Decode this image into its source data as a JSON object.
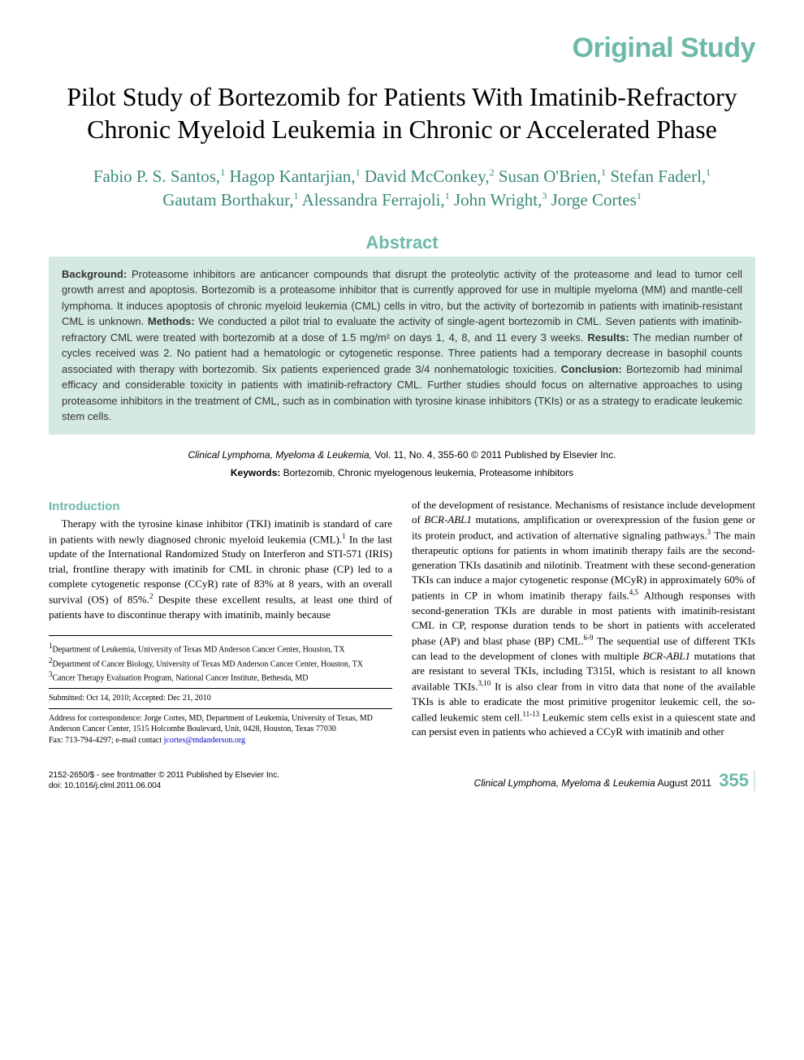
{
  "colors": {
    "accent": "#6db9a8",
    "accent_dark": "#3a8a7a",
    "abstract_bg": "#d5e9e3",
    "text": "#000000",
    "abstract_text": "#333333",
    "link": "#0000cc",
    "background": "#ffffff"
  },
  "typography": {
    "header_label_size": 34,
    "title_size": 32,
    "author_size": 21,
    "abstract_heading_size": 22,
    "abstract_body_size": 13,
    "body_size": 13,
    "section_heading_size": 15,
    "affiliations_size": 10,
    "footer_size": 10,
    "page_num_size": 22
  },
  "header_label": "Original Study",
  "title": "Pilot Study of Bortezomib for Patients With Imatinib-Refractory Chronic Myeloid Leukemia in Chronic or Accelerated Phase",
  "authors_html": "Fabio P. S. Santos,<sup>1</sup> Hagop Kantarjian,<sup>1</sup> David McConkey,<sup>2</sup> Susan O'Brien,<sup>1</sup> Stefan Faderl,<sup>1</sup> Gautam Borthakur,<sup>1</sup> Alessandra Ferrajoli,<sup>1</sup> John Wright,<sup>3</sup> Jorge Cortes<sup>1</sup>",
  "abstract": {
    "heading": "Abstract",
    "sections": [
      {
        "label": "Background:",
        "text": " Proteasome inhibitors are anticancer compounds that disrupt the proteolytic activity of the proteasome and lead to tumor cell growth arrest and apoptosis. Bortezomib is a proteasome inhibitor that is currently approved for use in multiple myeloma (MM) and mantle-cell lymphoma. It induces apoptosis of chronic myeloid leukemia (CML) cells in vitro, but the activity of bortezomib in patients with imatinib-resistant CML is unknown. "
      },
      {
        "label": "Methods:",
        "text": " We conducted a pilot trial to evaluate the activity of single-agent bortezomib in CML. Seven patients with imatinib-refractory CML were treated with bortezomib at a dose of 1.5 mg/m² on days 1, 4, 8, and 11 every 3 weeks. "
      },
      {
        "label": "Results:",
        "text": " The median number of cycles received was 2. No patient had a hematologic or cytogenetic response. Three patients had a temporary decrease in basophil counts associated with therapy with bortezomib. Six patients experienced grade 3/4 nonhematologic toxicities. "
      },
      {
        "label": "Conclusion:",
        "text": " Bortezomib had minimal efficacy and considerable toxicity in patients with imatinib-refractory CML. Further studies should focus on alternative approaches to using proteasome inhibitors in the treatment of CML, such as in combination with tyrosine kinase inhibitors (TKIs) or as a strategy to eradicate leukemic stem cells."
      }
    ]
  },
  "citation": {
    "journal": "Clinical Lymphoma, Myeloma & Leukemia,",
    "details": " Vol. 11, No. 4, 355-60 © 2011 Published by Elsevier Inc."
  },
  "keywords": {
    "label": "Keywords:",
    "text": " Bortezomib, Chronic myelogenous leukemia, Proteasome inhibitors"
  },
  "introduction": {
    "heading": "Introduction",
    "col1_html": "Therapy with the tyrosine kinase inhibitor (TKI) imatinib is standard of care in patients with newly diagnosed chronic myeloid leukemia (CML).<sup>1</sup> In the last update of the International Randomized Study on Interferon and STI-571 (IRIS) trial, frontline therapy with imatinib for CML in chronic phase (CP) led to a complete cytogenetic response (CCyR) rate of 83% at 8 years, with an overall survival (OS) of 85%.<sup>2</sup> Despite these excellent results, at least one third of patients have to discontinue therapy with imatinib, mainly because",
    "col2_html": "of the development of resistance. Mechanisms of resistance include development of <span class=\"italic\">BCR-ABL1</span> mutations, amplification or overexpression of the fusion gene or its protein product, and activation of alternative signaling pathways.<sup>3</sup> The main therapeutic options for patients in whom imatinib therapy fails are the second-generation TKIs dasatinib and nilotinib. Treatment with these second-generation TKIs can induce a major cytogenetic response (MCyR) in approximately 60% of patients in CP in whom imatinib therapy fails.<sup>4,5</sup> Although responses with second-generation TKIs are durable in most patients with imatinib-resistant CML in CP, response duration tends to be short in patients with accelerated phase (AP) and blast phase (BP) CML.<sup>6-9</sup> The sequential use of different TKIs can lead to the development of clones with multiple <span class=\"italic\">BCR-ABL1</span> mutations that are resistant to several TKIs, including T315I, which is resistant to all known available TKIs.<sup>3,10</sup> It is also clear from in vitro data that none of the available TKIs is able to eradicate the most primitive progenitor leukemic cell, the so-called leukemic stem cell.<sup>11-13</sup> Leukemic stem cells exist in a quiescent state and can persist even in patients who achieved a CCyR with imatinib and other"
  },
  "affiliations": {
    "items": [
      "<sup>1</sup>Department of Leukemia, University of Texas MD Anderson Cancer Center, Houston, TX",
      "<sup>2</sup>Department of Cancer Biology, University of Texas MD Anderson Cancer Center, Houston, TX",
      "<sup>3</sup>Cancer Therapy Evaluation Program, National Cancer Institute, Bethesda, MD"
    ],
    "submitted": "Submitted: Oct 14, 2010; Accepted: Dec 21, 2010",
    "correspondence": "Address for correspondence: Jorge Cortes, MD, Department of Leukemia, University of Texas, MD Anderson Cancer Center, 1515 Holcombe Boulevard, Unit, 0428, Houston, Texas 77030",
    "fax": "Fax: 713-794-4297; e-mail contact ",
    "email": "jcortes@mdanderson.org"
  },
  "footer": {
    "left_line1": "2152-2650/$ - see frontmatter © 2011 Published by Elsevier Inc.",
    "left_line2": "doi: 10.1016/j.clml.2011.06.004",
    "right_journal": "Clinical Lymphoma, Myeloma & Leukemia",
    "right_date": "  August 2011",
    "page_num": "355"
  }
}
